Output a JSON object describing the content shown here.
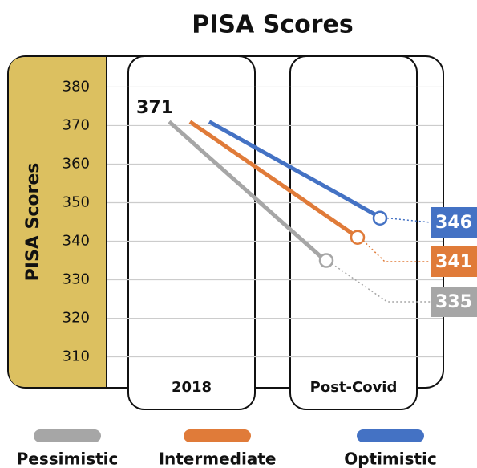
{
  "chart_data": {
    "type": "line",
    "title": "PISA Scores",
    "y_label": "PISA Scores",
    "categories": [
      "2018",
      "Post-Covid"
    ],
    "series": [
      {
        "name": "Pessimistic",
        "color": "#a6a6a6",
        "values": [
          371,
          335
        ]
      },
      {
        "name": "Intermediate",
        "color": "#e07b39",
        "values": [
          371,
          341
        ]
      },
      {
        "name": "Optimistic",
        "color": "#4472c4",
        "values": [
          371,
          346
        ]
      }
    ],
    "ylim": [
      302,
      388
    ],
    "yticks": [
      310,
      320,
      330,
      340,
      350,
      360,
      370,
      380
    ],
    "grid": true
  }
}
